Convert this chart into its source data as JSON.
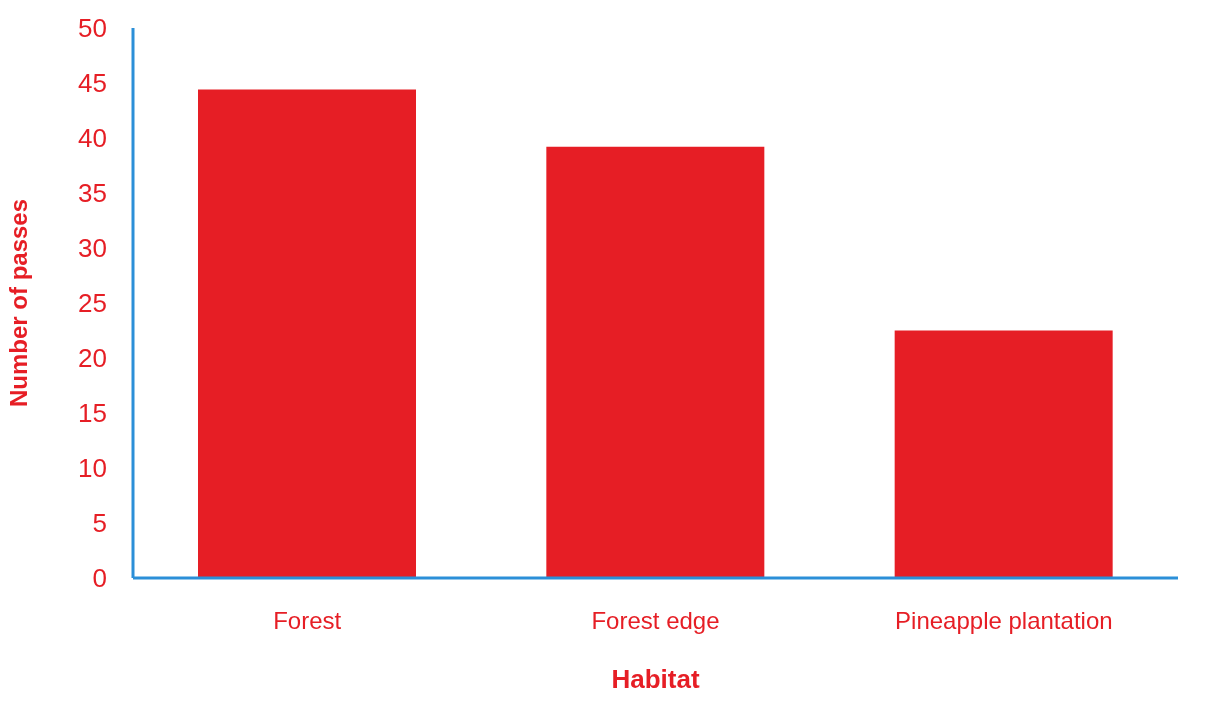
{
  "chart_data": {
    "type": "bar",
    "xlabel": "Habitat",
    "ylabel": "Number of passes",
    "categories": [
      "Forest",
      "Forest edge",
      "Pineapple plantation"
    ],
    "values": [
      44.4,
      39.2,
      22.5
    ],
    "color": "#e61e25",
    "ylim": [
      0,
      50
    ],
    "yticks": [
      0,
      5,
      10,
      15,
      20,
      25,
      30,
      35,
      40,
      45,
      50
    ],
    "grid": false
  }
}
